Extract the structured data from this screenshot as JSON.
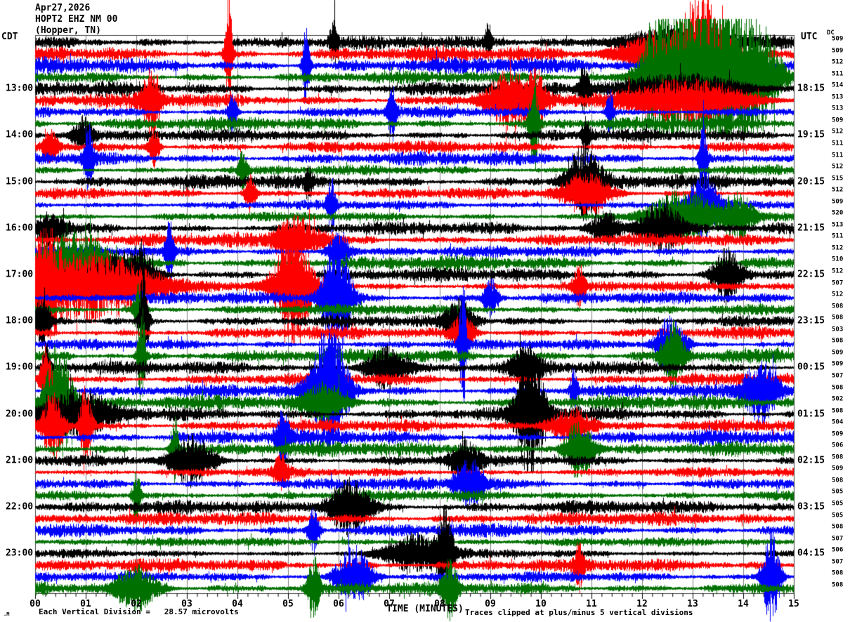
{
  "title": {
    "date": "Apr27,2026",
    "station": "HOPT2 EHZ NM 00",
    "location": "(Hopper, TN)"
  },
  "axes": {
    "left_timezone": "CDT",
    "right_timezone": "UTC",
    "dc_header": "DC",
    "left_labels": [
      "13:00",
      "14:00",
      "15:00",
      "16:00",
      "17:00",
      "18:00",
      "19:00",
      "20:00",
      "21:00",
      "22:00",
      "23:00"
    ],
    "right_labels": [
      "18:15",
      "19:15",
      "20:15",
      "21:15",
      "22:15",
      "23:15",
      "00:15",
      "01:15",
      "02:15",
      "03:15",
      "04:15"
    ],
    "x_tick_labels": [
      "00",
      "01",
      "02",
      "03",
      "04",
      "05",
      "06",
      "07",
      "08",
      "09",
      "10",
      "11",
      "12",
      "13",
      "14",
      "15"
    ],
    "xlabel": "TIME (MINUTES)"
  },
  "footer": {
    "left_text": "Each Vertical Division =   28.57 microvolts",
    "right_text": "Traces clipped at plus/minus 5 vertical divisions",
    "watermark": ".M"
  },
  "chart_data": {
    "type": "line",
    "subtype": "helicorder_seismogram",
    "station_code": "HOPT2 EHZ NM 00",
    "station_name": "Hopper, TN",
    "date": "Apr27,2026",
    "minutes_per_line": 15,
    "x_range_minutes": [
      0,
      15
    ],
    "lines": 48,
    "first_line_start_cdt": "12:00",
    "last_line_start_cdt": "23:45",
    "microvolts_per_division": 28.57,
    "clip_divisions": 5,
    "trace_color_cycle": [
      "#000000",
      "#ff0000",
      "#0000ff",
      "#007000"
    ],
    "grid_color": "#808080",
    "traces": [
      {
        "t": "12:00",
        "dc": 509
      },
      {
        "t": "12:15",
        "dc": 509
      },
      {
        "t": "12:30",
        "dc": 512
      },
      {
        "t": "12:45",
        "dc": 511
      },
      {
        "t": "13:00",
        "dc": 514
      },
      {
        "t": "13:15",
        "dc": 513
      },
      {
        "t": "13:30",
        "dc": 513
      },
      {
        "t": "13:45",
        "dc": 509
      },
      {
        "t": "14:00",
        "dc": 512
      },
      {
        "t": "14:15",
        "dc": 511
      },
      {
        "t": "14:30",
        "dc": 511
      },
      {
        "t": "14:45",
        "dc": 512
      },
      {
        "t": "15:00",
        "dc": 515
      },
      {
        "t": "15:15",
        "dc": 512
      },
      {
        "t": "15:30",
        "dc": 509
      },
      {
        "t": "15:45",
        "dc": 520
      },
      {
        "t": "16:00",
        "dc": 513
      },
      {
        "t": "16:15",
        "dc": 511
      },
      {
        "t": "16:30",
        "dc": 512
      },
      {
        "t": "16:45",
        "dc": 510
      },
      {
        "t": "17:00",
        "dc": 512
      },
      {
        "t": "17:15",
        "dc": 507
      },
      {
        "t": "17:30",
        "dc": 512
      },
      {
        "t": "17:45",
        "dc": 508
      },
      {
        "t": "18:00",
        "dc": 508
      },
      {
        "t": "18:15",
        "dc": 503
      },
      {
        "t": "18:30",
        "dc": 508
      },
      {
        "t": "18:45",
        "dc": 509
      },
      {
        "t": "19:00",
        "dc": 509
      },
      {
        "t": "19:15",
        "dc": 507
      },
      {
        "t": "19:30",
        "dc": 508
      },
      {
        "t": "19:45",
        "dc": 502
      },
      {
        "t": "20:00",
        "dc": 508
      },
      {
        "t": "20:15",
        "dc": 504
      },
      {
        "t": "20:30",
        "dc": 509
      },
      {
        "t": "20:45",
        "dc": 506
      },
      {
        "t": "21:00",
        "dc": 508
      },
      {
        "t": "21:15",
        "dc": 509
      },
      {
        "t": "21:30",
        "dc": 508
      },
      {
        "t": "21:45",
        "dc": 505
      },
      {
        "t": "22:00",
        "dc": 505
      },
      {
        "t": "22:15",
        "dc": 505
      },
      {
        "t": "22:30",
        "dc": 508
      },
      {
        "t": "22:45",
        "dc": 507
      },
      {
        "t": "23:00",
        "dc": 506
      },
      {
        "t": "23:15",
        "dc": 507
      },
      {
        "t": "23:30",
        "dc": 508
      },
      {
        "t": "23:45",
        "dc": 508
      }
    ],
    "events_note": "visible bursts/spikes: [minute, amplitude_divisions, width_minutes] per line index",
    "events": {
      "0": [
        [
          5.9,
          1.6,
          0.05
        ],
        [
          8.95,
          1.3,
          0.05
        ],
        [
          12.6,
          1.0,
          0.8
        ]
      ],
      "1": [
        [
          3.82,
          5,
          0.05
        ],
        [
          13.2,
          4.0,
          0.3
        ],
        [
          12.4,
          1.5,
          0.6
        ]
      ],
      "2": [
        [
          5.35,
          3.0,
          0.05
        ],
        [
          13.0,
          1.5,
          0.4
        ]
      ],
      "3": [
        [
          12.75,
          4.8,
          0.45
        ],
        [
          13.6,
          4.5,
          0.45
        ],
        [
          14.3,
          3.0,
          0.3
        ],
        [
          12.2,
          2.0,
          0.2
        ]
      ],
      "4": [
        [
          10.85,
          1.5,
          0.08
        ],
        [
          12.8,
          1.1,
          0.8
        ]
      ],
      "5": [
        [
          2.3,
          2.4,
          0.12
        ],
        [
          9.4,
          1.8,
          0.35
        ],
        [
          9.9,
          1.6,
          0.1
        ],
        [
          12.9,
          1.5,
          0.8
        ]
      ],
      "6": [
        [
          7.05,
          2.0,
          0.06
        ],
        [
          11.35,
          1.8,
          0.05
        ],
        [
          3.9,
          1.4,
          0.06
        ]
      ],
      "7": [
        [
          9.85,
          4.0,
          0.06
        ]
      ],
      "8": [
        [
          0.95,
          1.4,
          0.15
        ],
        [
          10.9,
          1.3,
          0.06
        ]
      ],
      "9": [
        [
          2.35,
          1.7,
          0.07
        ],
        [
          0.3,
          1.2,
          0.1
        ]
      ],
      "10": [
        [
          1.05,
          2.5,
          0.07
        ],
        [
          13.2,
          2.5,
          0.06
        ]
      ],
      "11": [
        [
          4.1,
          1.4,
          0.06
        ]
      ],
      "12": [
        [
          10.85,
          2.4,
          0.25
        ],
        [
          5.4,
          1.2,
          0.05
        ]
      ],
      "13": [
        [
          10.9,
          1.5,
          0.35
        ],
        [
          4.25,
          1.4,
          0.08
        ]
      ],
      "14": [
        [
          13.2,
          2.5,
          0.2
        ],
        [
          5.85,
          2.0,
          0.06
        ]
      ],
      "15": [
        [
          12.8,
          1.8,
          0.5
        ],
        [
          13.9,
          1.5,
          0.2
        ]
      ],
      "16": [
        [
          12.35,
          2.0,
          0.3
        ],
        [
          11.3,
          1.2,
          0.2
        ],
        [
          0.3,
          1.2,
          0.2
        ]
      ],
      "17": [
        [
          5.15,
          1.6,
          0.3
        ]
      ],
      "18": [
        [
          2.65,
          2.2,
          0.06
        ],
        [
          6.0,
          1.5,
          0.15
        ]
      ],
      "19": [
        [
          0.8,
          2.2,
          0.5
        ]
      ],
      "20": [
        [
          1.7,
          1.5,
          0.4
        ],
        [
          13.65,
          2.0,
          0.2
        ],
        [
          2.1,
          1.6,
          0.1
        ]
      ],
      "21": [
        [
          0.2,
          3.5,
          0.2
        ],
        [
          1.2,
          2.5,
          0.8
        ],
        [
          5.1,
          4.5,
          0.25
        ],
        [
          10.75,
          1.5,
          0.08
        ]
      ],
      "22": [
        [
          5.95,
          4.5,
          0.2
        ],
        [
          9.0,
          1.4,
          0.1
        ]
      ],
      "23": [
        [
          2.05,
          2.0,
          0.08
        ]
      ],
      "24": [
        [
          2.15,
          5,
          0.06
        ],
        [
          0.15,
          2.0,
          0.1
        ],
        [
          8.4,
          1.5,
          0.2
        ]
      ],
      "25": [
        [
          8.45,
          1.4,
          0.15
        ]
      ],
      "26": [
        [
          8.45,
          5,
          0.05
        ],
        [
          12.55,
          2.0,
          0.2
        ]
      ],
      "27": [
        [
          2.1,
          4.0,
          0.05
        ],
        [
          12.6,
          2.5,
          0.15
        ]
      ],
      "28": [
        [
          0.22,
          2.5,
          0.05
        ],
        [
          6.95,
          1.6,
          0.3
        ],
        [
          9.7,
          1.5,
          0.2
        ]
      ],
      "29": [
        [
          0.2,
          2.5,
          0.08
        ]
      ],
      "30": [
        [
          5.8,
          5,
          0.25
        ],
        [
          10.65,
          1.8,
          0.05
        ],
        [
          14.35,
          2.2,
          0.25
        ]
      ],
      "31": [
        [
          0.45,
          4.5,
          0.2
        ],
        [
          5.7,
          1.3,
          0.3
        ]
      ],
      "32": [
        [
          9.79,
          5,
          0.2
        ],
        [
          0.8,
          1.5,
          0.5
        ]
      ],
      "33": [
        [
          0.35,
          2.5,
          0.15
        ],
        [
          1.0,
          3.5,
          0.08
        ],
        [
          10.6,
          1.4,
          0.3
        ]
      ],
      "34": [
        [
          4.9,
          1.8,
          0.1
        ]
      ],
      "35": [
        [
          10.75,
          2.2,
          0.2
        ],
        [
          2.75,
          2.5,
          0.06
        ]
      ],
      "36": [
        [
          3.1,
          1.8,
          0.3
        ],
        [
          8.5,
          1.5,
          0.2
        ]
      ],
      "37": [
        [
          4.85,
          1.3,
          0.1
        ]
      ],
      "38": [
        [
          8.6,
          1.8,
          0.2
        ]
      ],
      "39": [
        [
          2.0,
          2.0,
          0.06
        ]
      ],
      "40": [
        [
          6.2,
          2.0,
          0.3
        ]
      ],
      "42": [
        [
          5.5,
          1.6,
          0.08
        ]
      ],
      "44": [
        [
          8.1,
          3.5,
          0.1
        ],
        [
          7.5,
          1.4,
          0.4
        ]
      ],
      "45": [
        [
          10.75,
          1.5,
          0.06
        ]
      ],
      "46": [
        [
          6.3,
          2.2,
          0.25
        ],
        [
          14.55,
          3.5,
          0.12
        ]
      ],
      "47": [
        [
          5.5,
          2.5,
          0.08
        ],
        [
          8.2,
          2.0,
          0.1
        ],
        [
          2.0,
          1.5,
          0.3
        ]
      ]
    }
  }
}
